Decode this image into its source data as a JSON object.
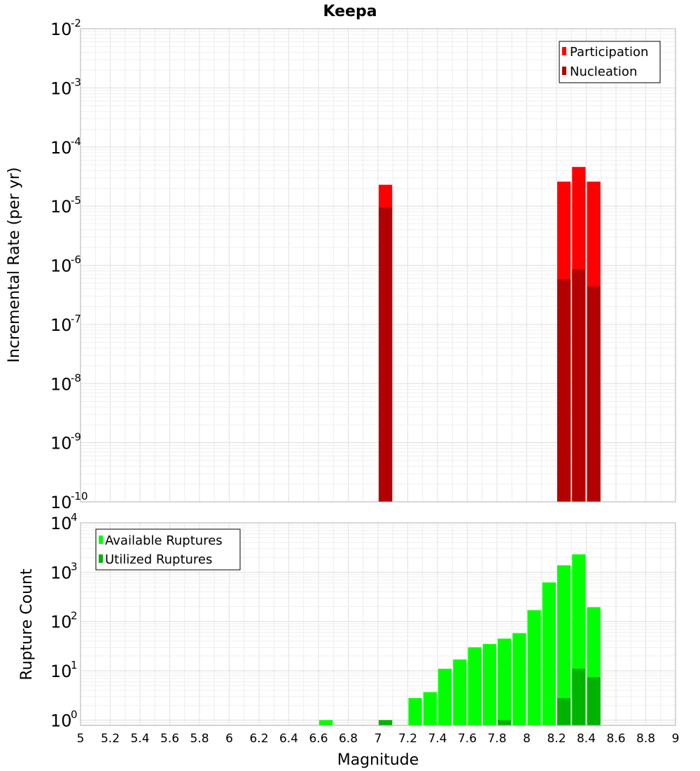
{
  "chart_data": [
    {
      "type": "bar",
      "title": "Keepa",
      "xlabel": "",
      "ylabel": "Incremental Rate (per yr)",
      "y_scale": "log",
      "xlim": [
        5,
        9
      ],
      "ylim": [
        1e-10,
        0.01
      ],
      "y_ticks": [
        {
          "base": "10",
          "exp": "-2"
        },
        {
          "base": "10",
          "exp": "-3"
        },
        {
          "base": "10",
          "exp": "-4"
        },
        {
          "base": "10",
          "exp": "-5"
        },
        {
          "base": "10",
          "exp": "-6"
        },
        {
          "base": "10",
          "exp": "-7"
        },
        {
          "base": "10",
          "exp": "-8"
        },
        {
          "base": "10",
          "exp": "-9"
        },
        {
          "base": "10",
          "exp": "-10"
        }
      ],
      "bar_width": 0.1,
      "legend_position": "top-right",
      "grid": true,
      "series": [
        {
          "name": "Participation",
          "color": "#ff0000",
          "points": [
            {
              "x": 7.05,
              "y": 2.3e-05
            },
            {
              "x": 8.25,
              "y": 2.6e-05
            },
            {
              "x": 8.35,
              "y": 4.6e-05
            },
            {
              "x": 8.45,
              "y": 2.6e-05
            }
          ]
        },
        {
          "name": "Nucleation",
          "color": "#b30000",
          "points": [
            {
              "x": 7.05,
              "y": 9.5e-06
            },
            {
              "x": 8.25,
              "y": 5.8e-07
            },
            {
              "x": 8.35,
              "y": 8.5e-07
            },
            {
              "x": 8.45,
              "y": 4.4e-07
            }
          ]
        }
      ]
    },
    {
      "type": "bar",
      "title": "",
      "xlabel": "Magnitude",
      "ylabel": "Rupture Count",
      "y_scale": "log",
      "xlim": [
        5,
        9
      ],
      "ylim": [
        0.78,
        10000
      ],
      "y_ticks": [
        {
          "base": "10",
          "exp": "4"
        },
        {
          "base": "10",
          "exp": "3"
        },
        {
          "base": "10",
          "exp": "2"
        },
        {
          "base": "10",
          "exp": "1"
        },
        {
          "base": "10",
          "exp": "0"
        }
      ],
      "x_ticks": [
        "5",
        "5.2",
        "5.4",
        "5.6",
        "5.8",
        "6",
        "6.2",
        "6.4",
        "6.6",
        "6.8",
        "7",
        "7.2",
        "7.4",
        "7.6",
        "7.8",
        "8",
        "8.2",
        "8.4",
        "8.6",
        "8.8",
        "9"
      ],
      "bar_width": 0.1,
      "legend_position": "top-left",
      "grid": true,
      "series": [
        {
          "name": "Available Ruptures",
          "color": "#00ff00",
          "points": [
            {
              "x": 6.65,
              "y": 1
            },
            {
              "x": 7.05,
              "y": 1
            },
            {
              "x": 7.25,
              "y": 2.8
            },
            {
              "x": 7.35,
              "y": 3.7
            },
            {
              "x": 7.45,
              "y": 11
            },
            {
              "x": 7.55,
              "y": 17
            },
            {
              "x": 7.65,
              "y": 30
            },
            {
              "x": 7.75,
              "y": 35
            },
            {
              "x": 7.85,
              "y": 45
            },
            {
              "x": 7.95,
              "y": 58
            },
            {
              "x": 8.05,
              "y": 170
            },
            {
              "x": 8.15,
              "y": 620
            },
            {
              "x": 8.25,
              "y": 1380
            },
            {
              "x": 8.35,
              "y": 2300
            },
            {
              "x": 8.45,
              "y": 195
            }
          ]
        },
        {
          "name": "Utilized Ruptures",
          "color": "#00b300",
          "points": [
            {
              "x": 7.05,
              "y": 1
            },
            {
              "x": 7.85,
              "y": 1
            },
            {
              "x": 8.25,
              "y": 2.8
            },
            {
              "x": 8.35,
              "y": 11
            },
            {
              "x": 8.45,
              "y": 7.4
            }
          ]
        }
      ]
    }
  ]
}
